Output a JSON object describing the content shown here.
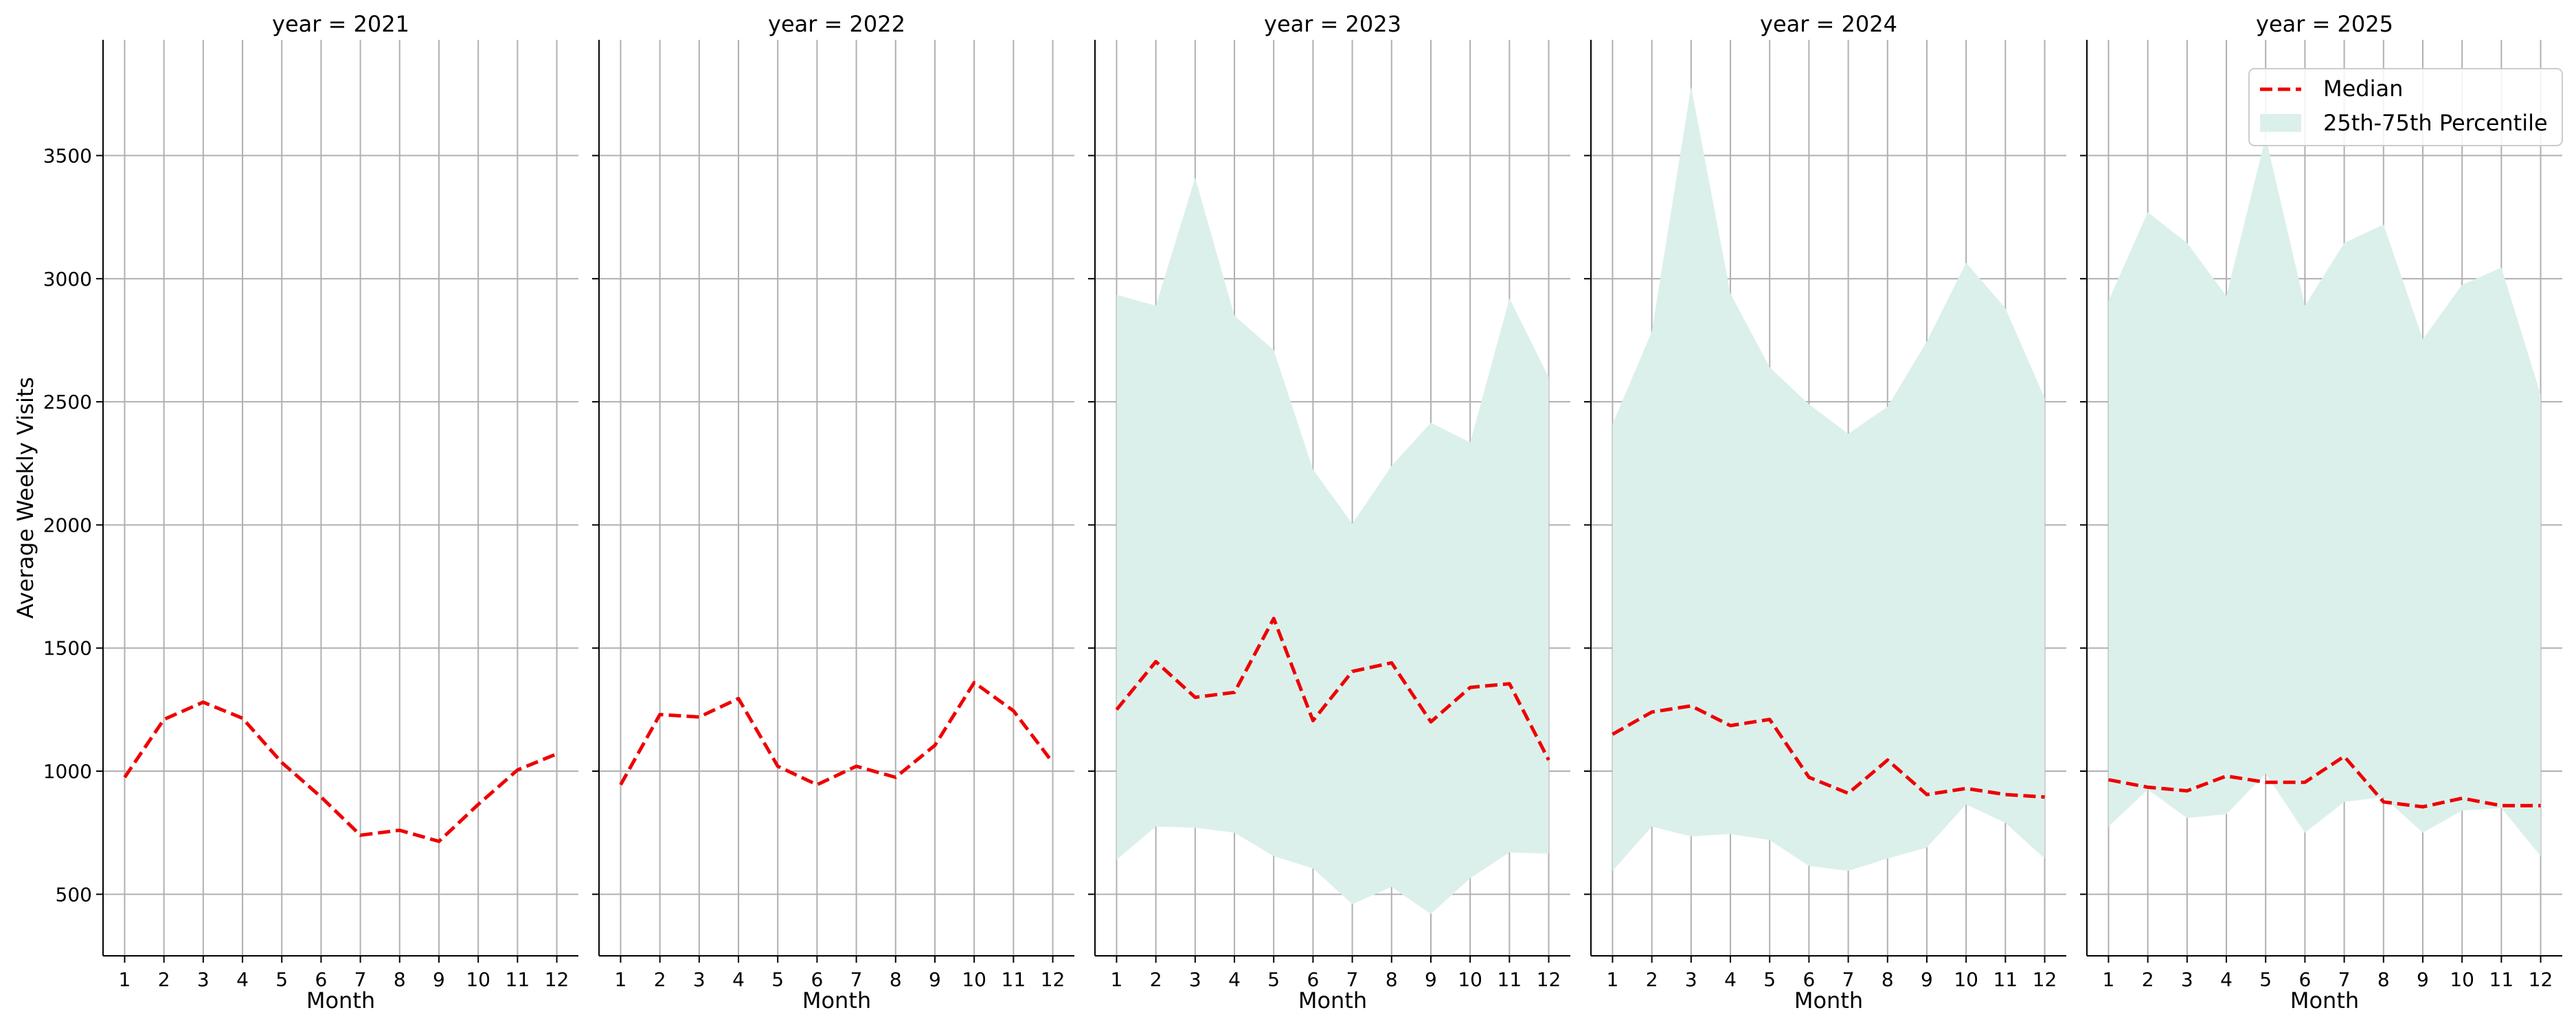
{
  "chart_data": {
    "type": "line",
    "ylabel": "Average Weekly Visits",
    "xlabel": "Month",
    "ylim": [
      250,
      3970
    ],
    "xlim": [
      0.45,
      12.55
    ],
    "y_ticks": [
      500,
      1000,
      1500,
      2000,
      2500,
      3000,
      3500
    ],
    "x_ticks": [
      1,
      2,
      3,
      4,
      5,
      6,
      7,
      8,
      9,
      10,
      11,
      12
    ],
    "grid": true,
    "legend": {
      "location": "top-right",
      "entries": [
        {
          "label": "Median",
          "style": "dashed-line",
          "color": "#ee0000"
        },
        {
          "label": "25th-75th Percentile",
          "style": "band",
          "color": "#dcf0eb"
        }
      ]
    },
    "panels": [
      {
        "title": "year = 2021",
        "x": [
          1,
          2,
          3,
          4,
          5,
          6,
          7,
          8,
          9,
          10,
          11,
          12
        ],
        "median": [
          975,
          1210,
          1280,
          1215,
          1035,
          895,
          740,
          760,
          715,
          865,
          1005,
          1070
        ],
        "p25": null,
        "p75": null
      },
      {
        "title": "year = 2022",
        "x": [
          1,
          2,
          3,
          4,
          5,
          6,
          7,
          8,
          9,
          10,
          11,
          12
        ],
        "median": [
          945,
          1230,
          1220,
          1295,
          1020,
          945,
          1020,
          975,
          1105,
          1360,
          1245,
          1035
        ],
        "p25": null,
        "p75": null
      },
      {
        "title": "year = 2023",
        "x": [
          1,
          2,
          3,
          4,
          5,
          6,
          7,
          8,
          9,
          10,
          11,
          12
        ],
        "median": [
          1250,
          1445,
          1300,
          1320,
          1620,
          1205,
          1405,
          1440,
          1200,
          1340,
          1355,
          1045
        ],
        "p25": [
          640,
          775,
          770,
          750,
          655,
          605,
          460,
          530,
          420,
          565,
          670,
          665
        ],
        "p75": [
          2935,
          2890,
          3410,
          2850,
          2710,
          2225,
          2005,
          2240,
          2415,
          2335,
          2920,
          2600
        ]
      },
      {
        "title": "year = 2024",
        "x": [
          1,
          2,
          3,
          4,
          5,
          6,
          7,
          8,
          9,
          10,
          11,
          12
        ],
        "median": [
          1150,
          1240,
          1265,
          1185,
          1210,
          975,
          910,
          1045,
          905,
          930,
          905,
          895
        ],
        "p25": [
          595,
          775,
          735,
          745,
          720,
          615,
          595,
          645,
          690,
          865,
          790,
          645
        ],
        "p75": [
          2410,
          2785,
          3780,
          2940,
          2640,
          2490,
          2370,
          2480,
          2745,
          3065,
          2880,
          2515
        ]
      },
      {
        "title": "year = 2025",
        "x": [
          1,
          2,
          3,
          4,
          5,
          6,
          7,
          8,
          9,
          10,
          11,
          12
        ],
        "median": [
          965,
          935,
          920,
          980,
          955,
          955,
          1060,
          875,
          855,
          890,
          860,
          860
        ],
        "p25": [
          775,
          925,
          810,
          825,
          990,
          750,
          875,
          895,
          750,
          840,
          850,
          655
        ],
        "p75": [
          2910,
          3270,
          3145,
          2930,
          3575,
          2890,
          3145,
          3220,
          2755,
          2975,
          3045,
          2530
        ]
      }
    ]
  }
}
